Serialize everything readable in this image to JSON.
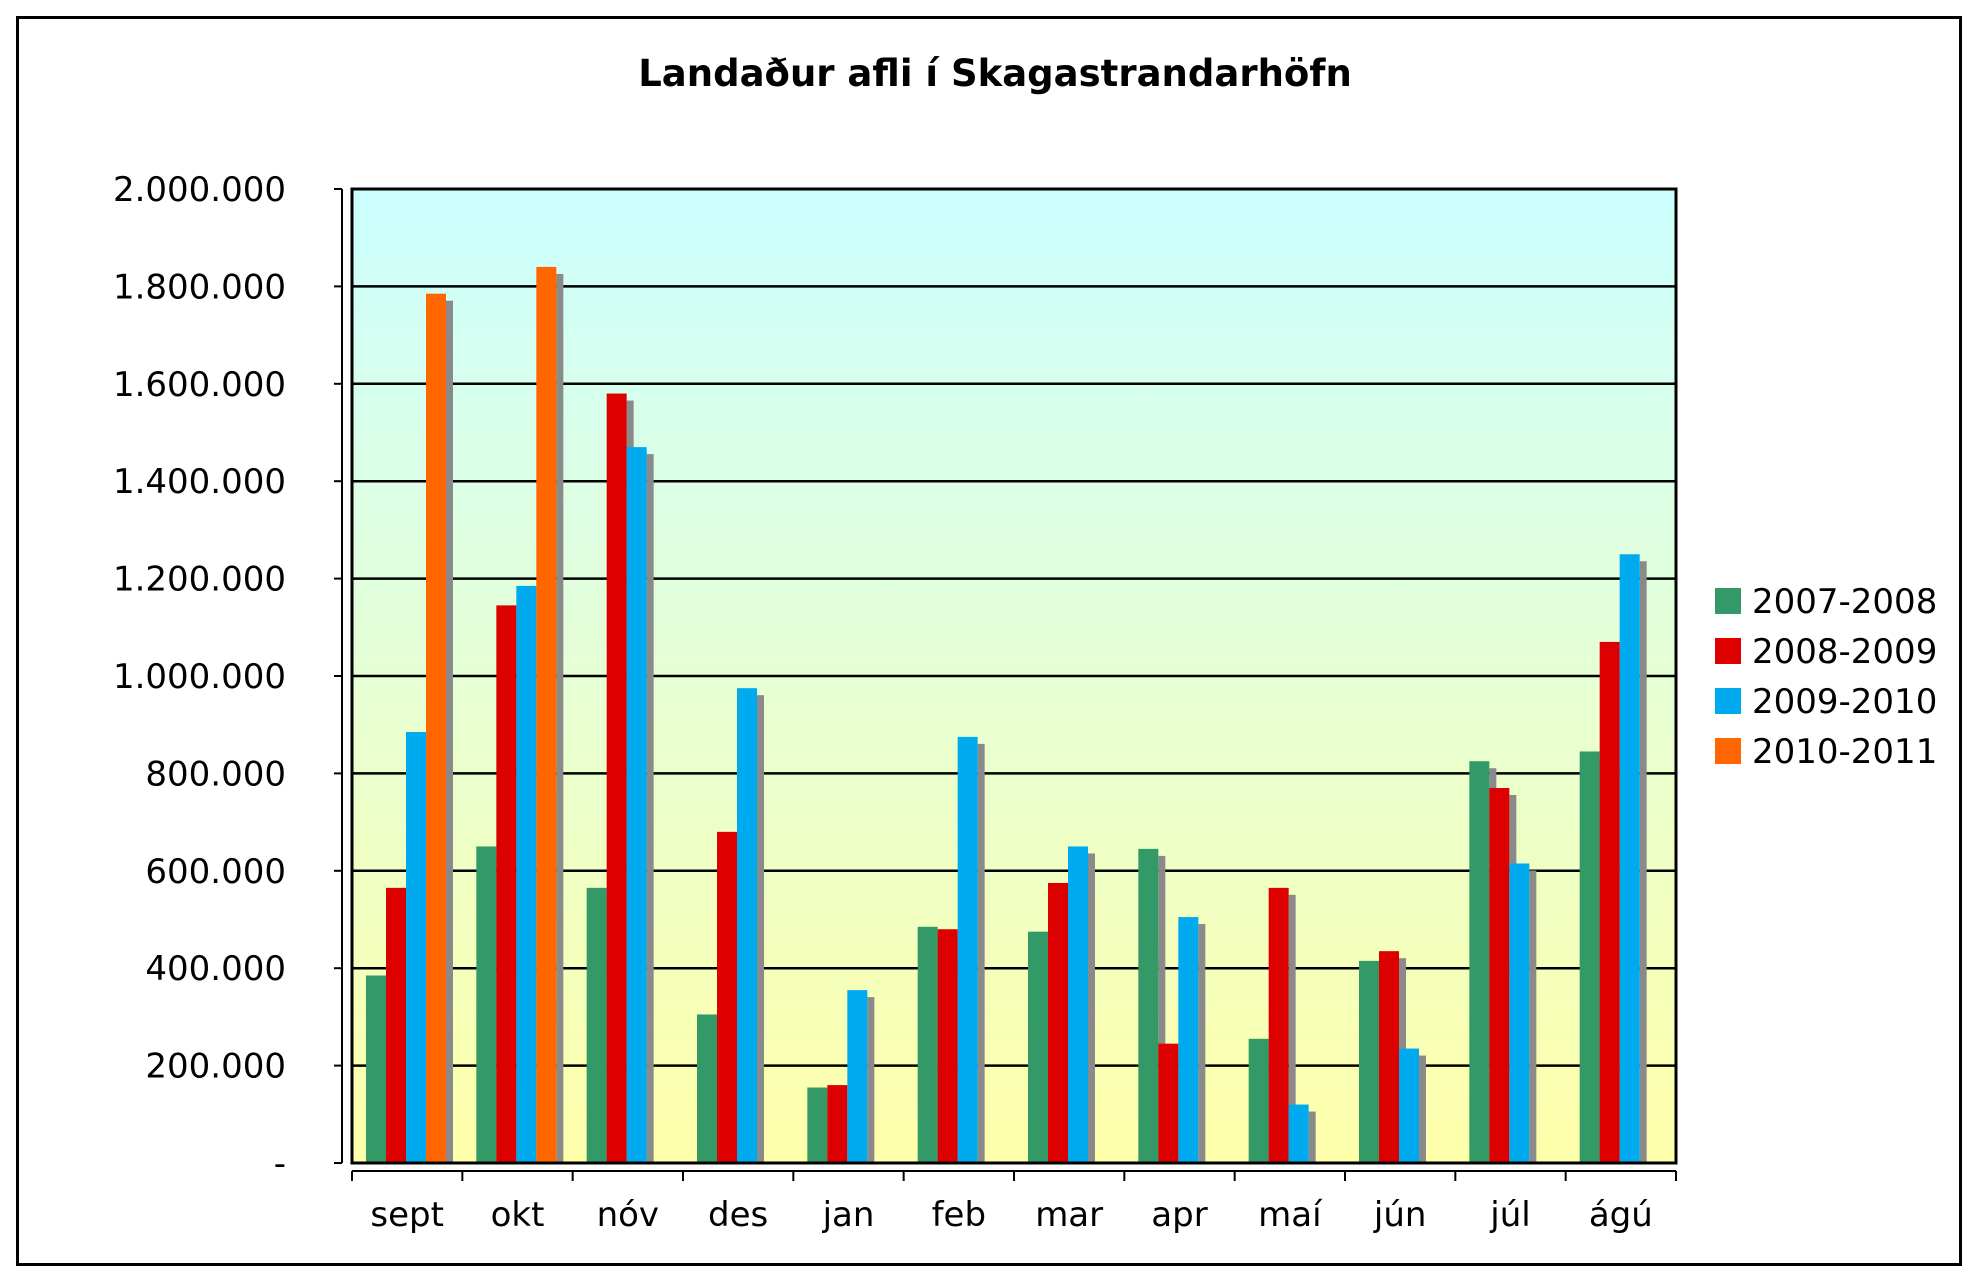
{
  "chart_data": {
    "type": "bar",
    "title": "Landaður afli í Skagastrandarhöfn",
    "xlabel": "",
    "ylabel": "",
    "ylim": [
      0,
      2000000
    ],
    "ytick_values": [
      0,
      200000,
      400000,
      600000,
      800000,
      1000000,
      1200000,
      1400000,
      1600000,
      1800000,
      2000000
    ],
    "ytick_labels": [
      "-",
      "200.000",
      "400.000",
      "600.000",
      "800.000",
      "1.000.000",
      "1.200.000",
      "1.400.000",
      "1.600.000",
      "1.800.000",
      "2.000.000"
    ],
    "categories": [
      "sept",
      "okt",
      "nóv",
      "des",
      "jan",
      "feb",
      "mar",
      "apr",
      "maí",
      "jún",
      "júl",
      "ágú"
    ],
    "grid": true,
    "legend_position": "right",
    "background_gradient": [
      "#ccffff",
      "#ffffaa"
    ],
    "series": [
      {
        "name": "2007-2008",
        "color": "#339966",
        "values": [
          385000,
          650000,
          565000,
          305000,
          155000,
          485000,
          475000,
          645000,
          255000,
          415000,
          825000,
          845000
        ]
      },
      {
        "name": "2008-2009",
        "color": "#dd0000",
        "values": [
          565000,
          1145000,
          1580000,
          680000,
          160000,
          480000,
          575000,
          245000,
          565000,
          435000,
          770000,
          1070000
        ]
      },
      {
        "name": "2009-2010",
        "color": "#00aaee",
        "values": [
          885000,
          1185000,
          1470000,
          975000,
          355000,
          875000,
          650000,
          505000,
          120000,
          235000,
          615000,
          1250000
        ]
      },
      {
        "name": "2010-2011",
        "color": "#ff6600",
        "values": [
          1785000,
          1840000,
          null,
          null,
          null,
          null,
          null,
          null,
          null,
          null,
          null,
          null
        ]
      }
    ]
  }
}
